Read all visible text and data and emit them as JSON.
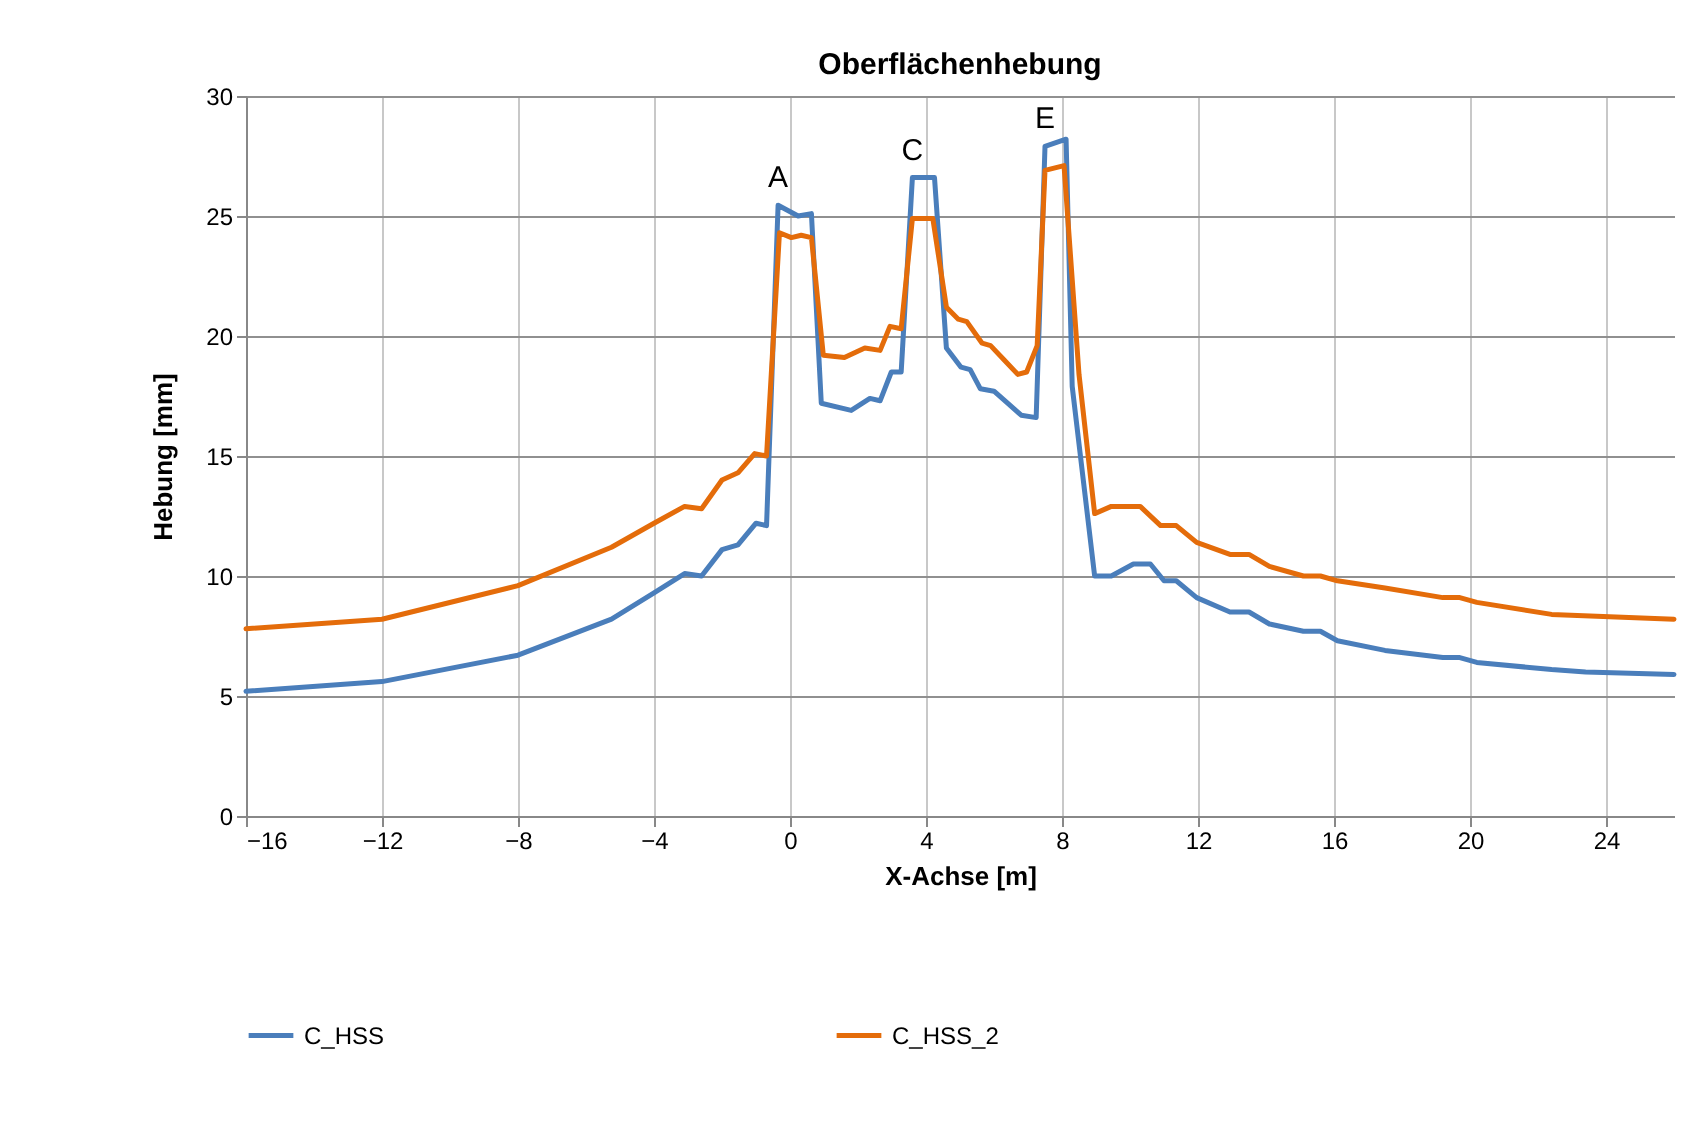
{
  "chart_data": {
    "type": "line",
    "title": "Oberflächenhebung",
    "xlabel": "X-Achse [m]",
    "ylabel": "Hebung [mm]",
    "xlim": [
      -16,
      26
    ],
    "xticks": [
      -16,
      -12,
      -8,
      -4,
      0,
      4,
      8,
      12,
      16,
      20,
      24
    ],
    "ylim": [
      0,
      30
    ],
    "yticks": [
      0,
      5,
      10,
      15,
      20,
      25,
      30
    ],
    "grid": true,
    "legend": "bottom",
    "line_style": "solid",
    "marker": "none",
    "annotations": [
      {
        "text": "A",
        "x": -0.35,
        "y": 25.45
      },
      {
        "text": "C",
        "x": 3.6,
        "y": 26.6
      },
      {
        "text": "E",
        "x": 7.5,
        "y": 27.9
      }
    ],
    "series": [
      {
        "name": "C_HSS",
        "color": "#4a7ebb",
        "x": [
          -16,
          -12,
          -8,
          -5.25,
          -4,
          -3.1,
          -2.6,
          -2,
          -1.53,
          -1,
          -0.69,
          -0.35,
          0.24,
          0.63,
          0.92,
          1.8,
          2.35,
          2.65,
          2.98,
          3.27,
          3.6,
          4.25,
          4.6,
          5.03,
          5.3,
          5.6,
          6,
          6.4,
          6.8,
          7.24,
          7.5,
          8.12,
          8.3,
          8.96,
          9.45,
          10.1,
          10.6,
          11,
          11.36,
          11.96,
          12.94,
          13.5,
          14.1,
          15.1,
          15.6,
          16.1,
          17.5,
          19.2,
          19.7,
          20.2,
          22.4,
          23.4,
          26
        ],
        "values": [
          5.2,
          5.6,
          6.7,
          8.2,
          9.3,
          10.1,
          10,
          11.1,
          11.3,
          12.2,
          12.1,
          25.45,
          25,
          25.1,
          17.2,
          16.9,
          17.4,
          17.3,
          18.5,
          18.5,
          26.6,
          26.6,
          19.5,
          18.7,
          18.6,
          17.8,
          17.7,
          17.2,
          16.7,
          16.6,
          27.9,
          28.2,
          17.9,
          10,
          10,
          10.5,
          10.5,
          9.8,
          9.8,
          9.1,
          8.5,
          8.5,
          8,
          7.7,
          7.7,
          7.3,
          6.9,
          6.6,
          6.6,
          6.4,
          6.1,
          6,
          5.9
        ]
      },
      {
        "name": "C_HSS_2",
        "color": "#e46c0a",
        "x": [
          -16,
          -12,
          -8,
          -5.25,
          -4,
          -3.1,
          -2.6,
          -2,
          -1.53,
          -1.04,
          -0.69,
          -0.31,
          0.04,
          0.33,
          0.63,
          0.98,
          1.6,
          2.2,
          2.65,
          2.94,
          3.27,
          3.6,
          4.2,
          4.6,
          4.95,
          5.2,
          5.65,
          5.9,
          6.3,
          6.7,
          6.96,
          7.27,
          7.5,
          8.06,
          8.5,
          8.96,
          9.45,
          10.3,
          10.9,
          11.36,
          11.96,
          12.94,
          13.5,
          14.1,
          15.1,
          15.6,
          16.1,
          17.5,
          19.2,
          19.7,
          20.2,
          22.4,
          26
        ],
        "values": [
          7.8,
          8.2,
          9.6,
          11.2,
          12.2,
          12.9,
          12.8,
          14,
          14.3,
          15.1,
          15,
          24.3,
          24.1,
          24.2,
          24.1,
          19.2,
          19.1,
          19.5,
          19.4,
          20.4,
          20.3,
          24.9,
          24.9,
          21.2,
          20.7,
          20.6,
          19.7,
          19.6,
          19,
          18.4,
          18.5,
          19.6,
          26.9,
          27.1,
          18.4,
          12.6,
          12.9,
          12.9,
          12.1,
          12.1,
          11.4,
          10.9,
          10.9,
          10.4,
          10,
          10,
          9.8,
          9.5,
          9.1,
          9.1,
          8.9,
          8.4,
          8.2
        ]
      }
    ]
  }
}
